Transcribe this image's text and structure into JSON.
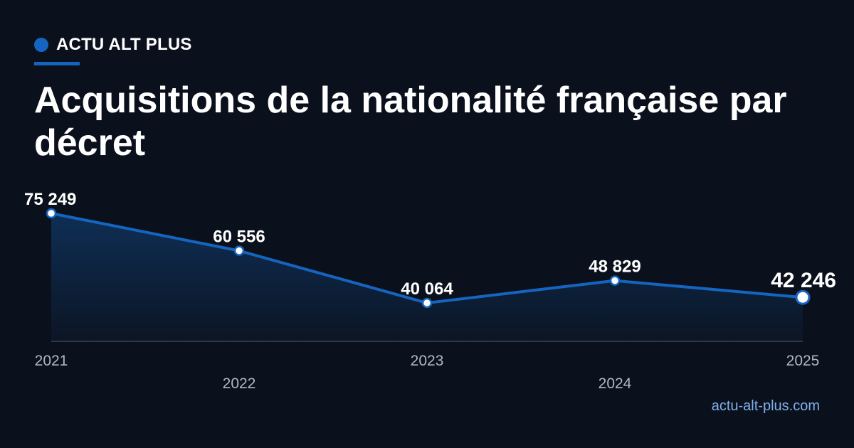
{
  "brand": {
    "name": "ACTU ALT PLUS",
    "accent_color": "#1565c0"
  },
  "title": "Acquisitions de la nationalité française par décret",
  "site": "actu-alt-plus.com",
  "chart_data": {
    "type": "area",
    "title": "Acquisitions de la nationalité française par décret",
    "xlabel": "",
    "ylabel": "",
    "categories": [
      "2021",
      "2022",
      "2023",
      "2024",
      "2025"
    ],
    "values": [
      75249,
      60556,
      40064,
      48829,
      42246
    ],
    "value_labels": [
      "75 249",
      "60 556",
      "40 064",
      "48 829",
      "42 246"
    ],
    "ylim": [
      0,
      75249
    ],
    "grid": false,
    "line_color": "#1565c0",
    "highlight_last": true
  }
}
